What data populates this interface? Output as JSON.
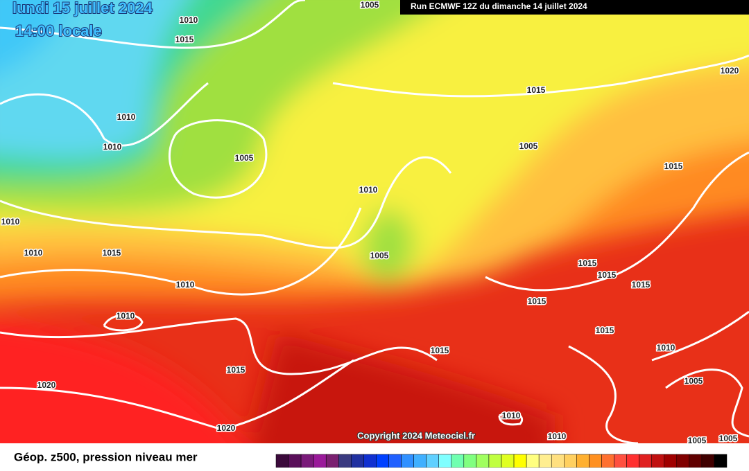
{
  "header": {
    "date": "lundi 15 juillet 2024",
    "time": "14:00 locale",
    "run": "Run ECMWF 12Z du dimanche 14 juillet 2024"
  },
  "map": {
    "isobar_labels": [
      "1005",
      "1010",
      "1015",
      "1010",
      "1010",
      "1005",
      "1015",
      "1020",
      "1005",
      "1015",
      "1010",
      "1010",
      "1010",
      "1015",
      "1005",
      "1010",
      "1015",
      "1015",
      "1015",
      "1015",
      "1010",
      "1015",
      "1010",
      "1015",
      "1015",
      "1005",
      "1020",
      "1010",
      "1020",
      "1010",
      "1005",
      "1005"
    ],
    "copyright": "Copyright 2024 Meteociel.fr"
  },
  "legend": {
    "title": "Géop. z500, pression niveau mer",
    "colors": [
      "#3b0a3b",
      "#5a0f5a",
      "#7a1a7a",
      "#9a1a9a",
      "#7a2070",
      "#3a3a80",
      "#2030a0",
      "#1030d0",
      "#0040ff",
      "#2060ff",
      "#3090ff",
      "#40b0ff",
      "#60d0ff",
      "#80ffff",
      "#70ffb0",
      "#80ff80",
      "#a0ff60",
      "#c0ff40",
      "#e0ff20",
      "#ffff00",
      "#ffff80",
      "#ffee90",
      "#ffe080",
      "#ffd060",
      "#ffb030",
      "#ff9020",
      "#ff7030",
      "#ff5040",
      "#ff3030",
      "#e02020",
      "#c01010",
      "#a00000",
      "#800000",
      "#600000",
      "#400000",
      "#000000"
    ]
  }
}
